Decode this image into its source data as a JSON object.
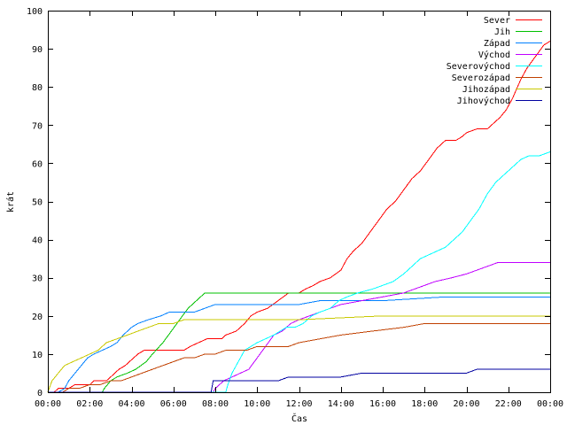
{
  "chart_data": {
    "type": "line",
    "xlabel": "Čas",
    "ylabel": "krát",
    "xlim": [
      0,
      24
    ],
    "ylim": [
      0,
      100
    ],
    "x_tick_labels": [
      "00:00",
      "02:00",
      "04:00",
      "06:00",
      "08:00",
      "10:00",
      "12:00",
      "14:00",
      "16:00",
      "18:00",
      "20:00",
      "22:00",
      "00:00"
    ],
    "y_ticks": [
      0,
      10,
      20,
      30,
      40,
      50,
      60,
      70,
      80,
      90,
      100
    ],
    "grid": false,
    "legend_position": "top-right",
    "series": [
      {
        "name": "Sever",
        "color": "#ff0000",
        "points": [
          [
            0.0,
            0
          ],
          [
            0.3,
            0
          ],
          [
            0.5,
            1
          ],
          [
            1.0,
            1
          ],
          [
            1.3,
            2
          ],
          [
            2.0,
            2
          ],
          [
            2.2,
            3
          ],
          [
            2.8,
            3
          ],
          [
            3.0,
            4
          ],
          [
            3.2,
            5
          ],
          [
            3.4,
            6
          ],
          [
            3.7,
            7
          ],
          [
            3.9,
            8
          ],
          [
            4.1,
            9
          ],
          [
            4.3,
            10
          ],
          [
            4.6,
            11
          ],
          [
            5.0,
            11
          ],
          [
            6.5,
            11
          ],
          [
            6.8,
            12
          ],
          [
            7.2,
            13
          ],
          [
            7.6,
            14
          ],
          [
            8.3,
            14
          ],
          [
            8.5,
            15
          ],
          [
            9.0,
            16
          ],
          [
            9.4,
            18
          ],
          [
            9.7,
            20
          ],
          [
            10.0,
            21
          ],
          [
            10.5,
            22
          ],
          [
            11.0,
            24
          ],
          [
            11.5,
            26
          ],
          [
            12.0,
            26
          ],
          [
            12.3,
            27
          ],
          [
            12.7,
            28
          ],
          [
            13.0,
            29
          ],
          [
            13.5,
            30
          ],
          [
            14.0,
            32
          ],
          [
            14.3,
            35
          ],
          [
            14.6,
            37
          ],
          [
            15.0,
            39
          ],
          [
            15.4,
            42
          ],
          [
            15.8,
            45
          ],
          [
            16.2,
            48
          ],
          [
            16.6,
            50
          ],
          [
            17.0,
            53
          ],
          [
            17.4,
            56
          ],
          [
            17.8,
            58
          ],
          [
            18.2,
            61
          ],
          [
            18.6,
            64
          ],
          [
            19.0,
            66
          ],
          [
            19.5,
            66
          ],
          [
            19.8,
            67
          ],
          [
            20.0,
            68
          ],
          [
            20.5,
            69
          ],
          [
            21.0,
            69
          ],
          [
            21.2,
            70
          ],
          [
            21.6,
            72
          ],
          [
            21.9,
            74
          ],
          [
            22.2,
            77
          ],
          [
            22.6,
            82
          ],
          [
            22.9,
            85
          ],
          [
            23.3,
            88
          ],
          [
            23.7,
            91
          ],
          [
            24.0,
            92
          ]
        ]
      },
      {
        "name": "Jih",
        "color": "#00c000",
        "points": [
          [
            0.0,
            0
          ],
          [
            2.6,
            0
          ],
          [
            2.7,
            1
          ],
          [
            3.0,
            3
          ],
          [
            3.3,
            4
          ],
          [
            3.8,
            5
          ],
          [
            4.2,
            6
          ],
          [
            4.7,
            8
          ],
          [
            5.0,
            10
          ],
          [
            5.5,
            13
          ],
          [
            5.9,
            16
          ],
          [
            6.3,
            19
          ],
          [
            6.7,
            22
          ],
          [
            7.1,
            24
          ],
          [
            7.5,
            26
          ],
          [
            8.0,
            26
          ],
          [
            12.0,
            26
          ],
          [
            16.0,
            26
          ],
          [
            20.0,
            26
          ],
          [
            24.0,
            26
          ]
        ]
      },
      {
        "name": "Západ",
        "color": "#0080ff",
        "points": [
          [
            0.0,
            0
          ],
          [
            0.5,
            0
          ],
          [
            0.8,
            1
          ],
          [
            1.0,
            3
          ],
          [
            1.3,
            5
          ],
          [
            1.6,
            7
          ],
          [
            1.9,
            9
          ],
          [
            2.2,
            10
          ],
          [
            2.6,
            11
          ],
          [
            3.0,
            12
          ],
          [
            3.3,
            13
          ],
          [
            3.6,
            15
          ],
          [
            4.0,
            17
          ],
          [
            4.3,
            18
          ],
          [
            4.8,
            19
          ],
          [
            5.4,
            20
          ],
          [
            5.8,
            21
          ],
          [
            7.0,
            21
          ],
          [
            7.5,
            22
          ],
          [
            8.0,
            23
          ],
          [
            12.0,
            23
          ],
          [
            13.0,
            24
          ],
          [
            16.0,
            24
          ],
          [
            19.0,
            25
          ],
          [
            24.0,
            25
          ]
        ]
      },
      {
        "name": "Východ",
        "color": "#c000ff",
        "points": [
          [
            0.0,
            0
          ],
          [
            7.9,
            0
          ],
          [
            8.0,
            1
          ],
          [
            8.4,
            3
          ],
          [
            8.8,
            4
          ],
          [
            9.2,
            5
          ],
          [
            9.6,
            6
          ],
          [
            10.0,
            9
          ],
          [
            10.4,
            12
          ],
          [
            10.8,
            15
          ],
          [
            11.2,
            16
          ],
          [
            11.6,
            18
          ],
          [
            12.0,
            19
          ],
          [
            12.5,
            20
          ],
          [
            13.0,
            21
          ],
          [
            13.5,
            22
          ],
          [
            14.0,
            23
          ],
          [
            15.0,
            24
          ],
          [
            16.0,
            25
          ],
          [
            17.0,
            26
          ],
          [
            18.0,
            28
          ],
          [
            18.5,
            29
          ],
          [
            19.3,
            30
          ],
          [
            20.0,
            31
          ],
          [
            20.5,
            32
          ],
          [
            21.0,
            33
          ],
          [
            21.5,
            34
          ],
          [
            24.0,
            34
          ]
        ]
      },
      {
        "name": "Severovýchod",
        "color": "#00ffff",
        "points": [
          [
            0.0,
            0
          ],
          [
            8.5,
            0
          ],
          [
            8.6,
            2
          ],
          [
            8.8,
            5
          ],
          [
            9.1,
            8
          ],
          [
            9.4,
            11
          ],
          [
            9.7,
            12
          ],
          [
            10.0,
            13
          ],
          [
            10.4,
            14
          ],
          [
            10.8,
            15
          ],
          [
            11.1,
            16
          ],
          [
            11.4,
            17
          ],
          [
            11.8,
            17
          ],
          [
            12.2,
            18
          ],
          [
            12.6,
            20
          ],
          [
            13.0,
            21
          ],
          [
            13.5,
            22
          ],
          [
            13.9,
            24
          ],
          [
            14.3,
            25
          ],
          [
            14.8,
            26
          ],
          [
            15.5,
            27
          ],
          [
            16.0,
            28
          ],
          [
            16.5,
            29
          ],
          [
            17.0,
            31
          ],
          [
            17.4,
            33
          ],
          [
            17.8,
            35
          ],
          [
            18.2,
            36
          ],
          [
            18.6,
            37
          ],
          [
            19.0,
            38
          ],
          [
            19.4,
            40
          ],
          [
            19.8,
            42
          ],
          [
            20.2,
            45
          ],
          [
            20.6,
            48
          ],
          [
            21.0,
            52
          ],
          [
            21.4,
            55
          ],
          [
            21.8,
            57
          ],
          [
            22.2,
            59
          ],
          [
            22.6,
            61
          ],
          [
            23.0,
            62
          ],
          [
            23.5,
            62
          ],
          [
            24.0,
            63
          ]
        ]
      },
      {
        "name": "Severozápad",
        "color": "#c04000",
        "points": [
          [
            0.0,
            0
          ],
          [
            0.7,
            0
          ],
          [
            1.0,
            1
          ],
          [
            1.5,
            1
          ],
          [
            2.0,
            2
          ],
          [
            2.5,
            2
          ],
          [
            3.0,
            3
          ],
          [
            3.5,
            3
          ],
          [
            4.0,
            4
          ],
          [
            4.5,
            5
          ],
          [
            5.0,
            6
          ],
          [
            5.5,
            7
          ],
          [
            6.0,
            8
          ],
          [
            6.5,
            9
          ],
          [
            7.0,
            9
          ],
          [
            7.5,
            10
          ],
          [
            8.0,
            10
          ],
          [
            8.5,
            11
          ],
          [
            9.5,
            11
          ],
          [
            10.0,
            12
          ],
          [
            11.5,
            12
          ],
          [
            12.0,
            13
          ],
          [
            13.0,
            14
          ],
          [
            14.0,
            15
          ],
          [
            15.5,
            16
          ],
          [
            17.0,
            17
          ],
          [
            18.0,
            18
          ],
          [
            20.0,
            18
          ],
          [
            24.0,
            18
          ]
        ]
      },
      {
        "name": "Jihozápad",
        "color": "#c8c800",
        "points": [
          [
            0.0,
            0
          ],
          [
            0.2,
            3
          ],
          [
            0.5,
            5
          ],
          [
            0.8,
            7
          ],
          [
            1.2,
            8
          ],
          [
            1.6,
            9
          ],
          [
            2.0,
            10
          ],
          [
            2.4,
            11
          ],
          [
            2.8,
            13
          ],
          [
            3.3,
            14
          ],
          [
            3.8,
            15
          ],
          [
            4.3,
            16
          ],
          [
            4.8,
            17
          ],
          [
            5.3,
            18
          ],
          [
            6.0,
            18
          ],
          [
            6.5,
            19
          ],
          [
            12.0,
            19
          ],
          [
            16.0,
            20
          ],
          [
            24.0,
            20
          ]
        ]
      },
      {
        "name": "Jihovýchod",
        "color": "#0000a0",
        "points": [
          [
            0.0,
            0
          ],
          [
            7.8,
            0
          ],
          [
            7.9,
            3
          ],
          [
            9.0,
            3
          ],
          [
            10.0,
            3
          ],
          [
            11.0,
            3
          ],
          [
            11.5,
            4
          ],
          [
            13.0,
            4
          ],
          [
            14.0,
            4
          ],
          [
            15.0,
            5
          ],
          [
            16.0,
            5
          ],
          [
            18.0,
            5
          ],
          [
            20.0,
            5
          ],
          [
            20.5,
            6
          ],
          [
            24.0,
            6
          ]
        ]
      }
    ]
  }
}
